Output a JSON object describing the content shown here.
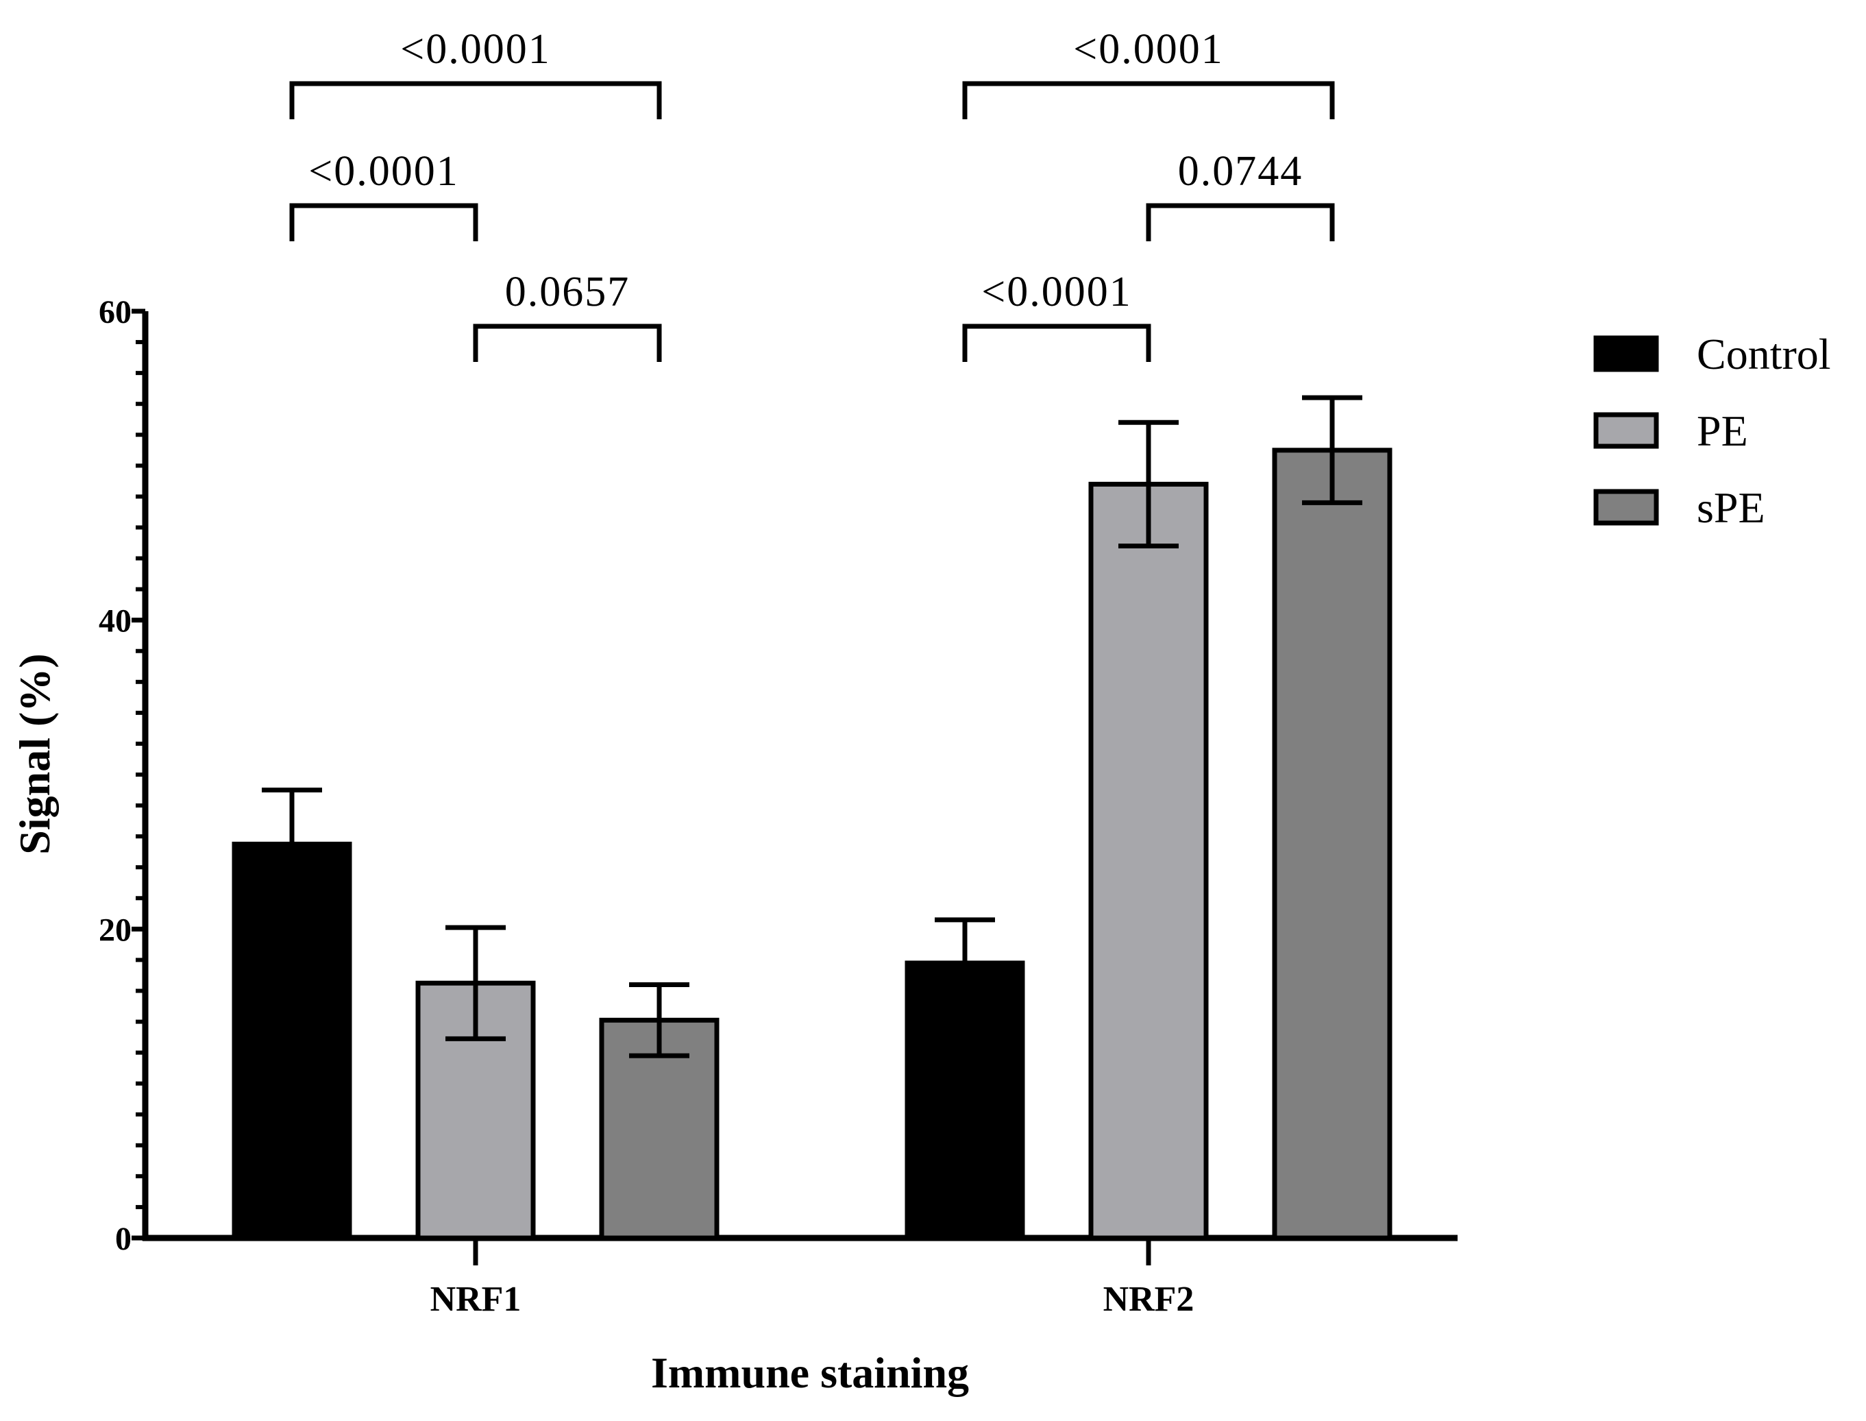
{
  "chart_data": {
    "type": "bar",
    "title": "",
    "xlabel": "Immune staining",
    "ylabel": "Signal (%)",
    "ylim": [
      0,
      60
    ],
    "yticks": [
      "0",
      "20",
      "40",
      "60"
    ],
    "minor_ticks_per_major": 10,
    "categories": [
      "NRF1",
      "NRF2"
    ],
    "series": [
      {
        "name": "Control",
        "color": "#000000",
        "values": [
          25.5,
          17.8
        ],
        "errors": [
          3.5,
          2.8
        ]
      },
      {
        "name": "PE",
        "color": "#a7a7ab",
        "values": [
          16.5,
          48.8
        ],
        "errors": [
          3.6,
          4.0
        ]
      },
      {
        "name": "sPE",
        "color": "#808080",
        "values": [
          14.1,
          51.0
        ],
        "errors": [
          2.3,
          3.4
        ]
      }
    ],
    "comparisons": [
      {
        "category": 0,
        "from": 0,
        "to": 2,
        "label": "<0.0001",
        "level": 3
      },
      {
        "category": 0,
        "from": 0,
        "to": 1,
        "label": "<0.0001",
        "level": 2
      },
      {
        "category": 0,
        "from": 1,
        "to": 2,
        "label": "0.0657",
        "level": 1
      },
      {
        "category": 1,
        "from": 0,
        "to": 2,
        "label": "<0.0001",
        "level": 3
      },
      {
        "category": 1,
        "from": 1,
        "to": 2,
        "label": "0.0744",
        "level": 2
      },
      {
        "category": 1,
        "from": 0,
        "to": 1,
        "label": "<0.0001",
        "level": 1
      }
    ],
    "legend_position": "right"
  }
}
